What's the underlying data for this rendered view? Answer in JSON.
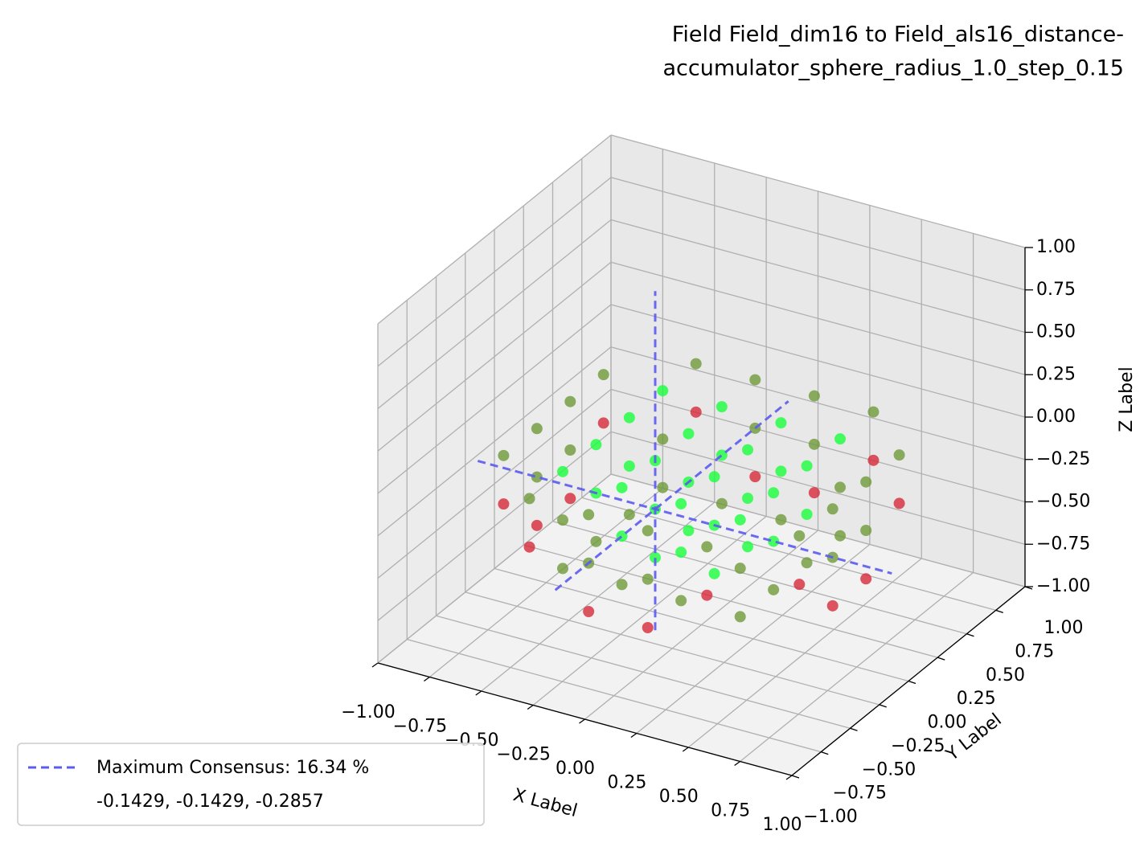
{
  "chart_data": {
    "type": "scatter3d",
    "title": [
      "Field Field_dim16 to Field_als16_distance-",
      "accumulator_sphere_radius_1.0_step_0.15"
    ],
    "xlabel": "X Label",
    "ylabel": "Y Label",
    "zlabel": "Z Label",
    "xlim": [
      -1,
      1
    ],
    "ylim": [
      -1,
      1
    ],
    "zlim": [
      -1,
      1
    ],
    "xticks": [
      {
        "value": -1,
        "label": "−1.00"
      },
      {
        "value": -0.75,
        "label": "−0.75"
      },
      {
        "value": -0.5,
        "label": "−0.50"
      },
      {
        "value": -0.25,
        "label": "−0.25"
      },
      {
        "value": 0,
        "label": "0.00"
      },
      {
        "value": 0.25,
        "label": "0.25"
      },
      {
        "value": 0.5,
        "label": "0.50"
      },
      {
        "value": 0.75,
        "label": "0.75"
      },
      {
        "value": 1,
        "label": "1.00"
      }
    ],
    "yticks": [
      {
        "value": -1,
        "label": "−1.00"
      },
      {
        "value": -0.75,
        "label": "−0.75"
      },
      {
        "value": -0.5,
        "label": "−0.50"
      },
      {
        "value": -0.25,
        "label": "−0.25"
      },
      {
        "value": 0,
        "label": "0.00"
      },
      {
        "value": 0.25,
        "label": "0.25"
      },
      {
        "value": 0.5,
        "label": "0.50"
      },
      {
        "value": 0.75,
        "label": "0.75"
      },
      {
        "value": 1,
        "label": "1.00"
      }
    ],
    "zticks": [
      {
        "value": -1,
        "label": "−1.00"
      },
      {
        "value": -0.75,
        "label": "−0.75"
      },
      {
        "value": -0.5,
        "label": "−0.50"
      },
      {
        "value": -0.25,
        "label": "−0.25"
      },
      {
        "value": 0,
        "label": "0.00"
      },
      {
        "value": 0.25,
        "label": "0.25"
      },
      {
        "value": 0.5,
        "label": "0.50"
      },
      {
        "value": 0.75,
        "label": "0.75"
      },
      {
        "value": 1,
        "label": "1.00"
      }
    ],
    "grid": true,
    "x": [
      -0.7143,
      -0.7143,
      -0.7143,
      -0.7143,
      -0.4286,
      -0.4286,
      -0.4286,
      -0.4286,
      -0.4286,
      -0.4286,
      -0.1429,
      -0.1429,
      -0.1429,
      -0.1429,
      -0.1429,
      -0.1429,
      0.1429,
      0.1429,
      0.1429,
      0.1429,
      0.1429,
      0.1429,
      0.4286,
      0.4286,
      0.4286,
      0.4286,
      0.4286,
      0.4286,
      0.7143,
      0.7143,
      0.7143,
      0.7143,
      -0.7143,
      -0.7143,
      -0.7143,
      -0.7143,
      -0.4286,
      -0.4286,
      -0.4286,
      -0.4286,
      -0.4286,
      -0.4286,
      -0.1429,
      -0.1429,
      -0.1429,
      -0.1429,
      -0.1429,
      -0.1429,
      0.1429,
      0.1429,
      0.1429,
      0.1429,
      0.1429,
      0.1429,
      0.4286,
      0.4286,
      0.4286,
      0.4286,
      0.4286,
      0.4286,
      0.7143,
      0.7143,
      0.7143,
      0.7143,
      -0.7143,
      -0.7143,
      -0.4286,
      -0.4286,
      -0.4286,
      -0.4286,
      -0.1429,
      -0.1429,
      -0.1429,
      -0.1429,
      -0.1429,
      -0.1429,
      0.1429,
      0.1429,
      0.1429,
      0.1429,
      0.1429,
      0.1429,
      0.4286,
      0.4286,
      0.4286,
      0.4286,
      0.7143,
      0.7143
    ],
    "y": [
      -0.4286,
      -0.1429,
      0.1429,
      0.4286,
      -0.7143,
      -0.4286,
      -0.1429,
      0.1429,
      0.4286,
      0.7143,
      -0.7143,
      -0.4286,
      -0.1429,
      0.1429,
      0.4286,
      0.7143,
      -0.7143,
      -0.4286,
      -0.1429,
      0.1429,
      0.4286,
      0.7143,
      -0.7143,
      -0.4286,
      -0.1429,
      0.1429,
      0.4286,
      0.7143,
      -0.4286,
      -0.1429,
      0.1429,
      0.4286,
      -0.4286,
      -0.1429,
      0.1429,
      0.4286,
      -0.7143,
      -0.4286,
      -0.1429,
      0.1429,
      0.4286,
      0.7143,
      -0.7143,
      -0.4286,
      -0.1429,
      0.1429,
      0.4286,
      0.7143,
      -0.7143,
      -0.4286,
      -0.1429,
      0.1429,
      0.4286,
      0.7143,
      -0.7143,
      -0.4286,
      -0.1429,
      0.1429,
      0.4286,
      0.7143,
      -0.4286,
      -0.1429,
      0.1429,
      0.4286,
      -0.1429,
      0.1429,
      -0.4286,
      -0.1429,
      0.1429,
      0.4286,
      -0.7143,
      -0.4286,
      -0.1429,
      0.1429,
      0.4286,
      0.7143,
      -0.7143,
      -0.4286,
      -0.1429,
      0.1429,
      0.4286,
      0.7143,
      -0.4286,
      -0.1429,
      0.1429,
      0.4286,
      -0.1429,
      0.1429
    ],
    "z": [
      0,
      0,
      0,
      0,
      0,
      0,
      0,
      0,
      0,
      0,
      0,
      0,
      0,
      0,
      0,
      0,
      0,
      0,
      0,
      0,
      0,
      0,
      0,
      0,
      0,
      0,
      0,
      0,
      0,
      0,
      0,
      0,
      -0.2857,
      -0.2857,
      -0.2857,
      -0.2857,
      -0.2857,
      -0.2857,
      -0.2857,
      -0.2857,
      -0.2857,
      -0.2857,
      -0.2857,
      -0.2857,
      -0.2857,
      -0.2857,
      -0.2857,
      -0.2857,
      -0.2857,
      -0.2857,
      -0.2857,
      -0.2857,
      -0.2857,
      -0.2857,
      -0.2857,
      -0.2857,
      -0.2857,
      -0.2857,
      -0.2857,
      -0.2857,
      -0.2857,
      -0.2857,
      -0.2857,
      -0.2857,
      -0.5714,
      -0.5714,
      -0.5714,
      -0.5714,
      -0.5714,
      -0.5714,
      -0.5714,
      -0.5714,
      -0.5714,
      -0.5714,
      -0.5714,
      -0.5714,
      -0.5714,
      -0.5714,
      -0.5714,
      -0.5714,
      -0.5714,
      -0.5714,
      -0.5714,
      -0.5714,
      -0.5714,
      -0.5714,
      -0.5714,
      -0.5714
    ],
    "colors": [
      "#6e9a38",
      "#6e9a38",
      "#6e9a38",
      "#6e9a38",
      "#6e9a38",
      "#1aff3c",
      "#1aff3c",
      "#1aff3c",
      "#1aff3c",
      "#6e9a38",
      "#6e9a38",
      "#1aff3c",
      "#1aff3c",
      "#1aff3c",
      "#1aff3c",
      "#6e9a38",
      "#6e9a38",
      "#1aff3c",
      "#1aff3c",
      "#1aff3c",
      "#1aff3c",
      "#6e9a38",
      "#6e9a38",
      "#1aff3c",
      "#1aff3c",
      "#1aff3c",
      "#1aff3c",
      "#6e9a38",
      "#6e9a38",
      "#6e9a38",
      "#6e9a38",
      "#6e9a38",
      "#d62b3a",
      "#6e9a38",
      "#6e9a38",
      "#d62b3a",
      "#d62b3a",
      "#6e9a38",
      "#1aff3c",
      "#1aff3c",
      "#6e9a38",
      "#d62b3a",
      "#6e9a38",
      "#1aff3c",
      "#1aff3c",
      "#1aff3c",
      "#1aff3c",
      "#6e9a38",
      "#6e9a38",
      "#1aff3c",
      "#1aff3c",
      "#1aff3c",
      "#1aff3c",
      "#6e9a38",
      "#d62b3a",
      "#6e9a38",
      "#1aff3c",
      "#1aff3c",
      "#6e9a38",
      "#d62b3a",
      "#d62b3a",
      "#6e9a38",
      "#6e9a38",
      "#d62b3a",
      "#d62b3a",
      "#d62b3a",
      "#6e9a38",
      "#6e9a38",
      "#6e9a38",
      "#6e9a38",
      "#d62b3a",
      "#6e9a38",
      "#1aff3c",
      "#1aff3c",
      "#6e9a38",
      "#d62b3a",
      "#d62b3a",
      "#6e9a38",
      "#1aff3c",
      "#1aff3c",
      "#6e9a38",
      "#d62b3a",
      "#6e9a38",
      "#6e9a38",
      "#6e9a38",
      "#6e9a38",
      "#d62b3a",
      "#d62b3a"
    ],
    "consensus": {
      "x": -0.1429,
      "y": -0.1429,
      "z": -0.2857,
      "color": "#5b5bf0"
    },
    "legend": {
      "label": "Maximum Consensus: 16.34 %",
      "detail": "-0.1429, -0.1429, -0.2857",
      "position": "lower left"
    }
  }
}
